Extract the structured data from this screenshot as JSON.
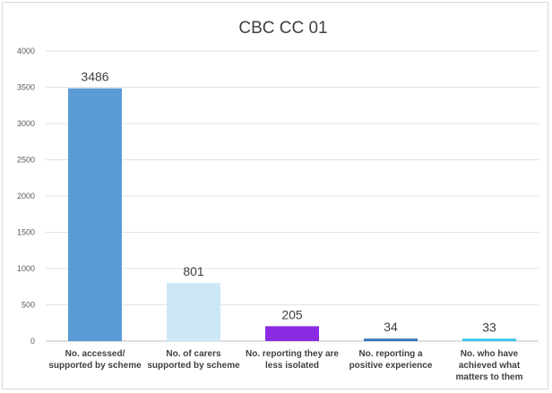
{
  "chart_data": {
    "type": "bar",
    "title": "CBC CC 01",
    "xlabel": "",
    "ylabel": "",
    "ylim": [
      0,
      4000
    ],
    "yticks": [
      0,
      500,
      1000,
      1500,
      2000,
      2500,
      3000,
      3500,
      4000
    ],
    "grid": true,
    "legend": "none",
    "categories": [
      [
        "No. accessed/",
        "supported by scheme"
      ],
      [
        "No. of carers",
        "supported by scheme"
      ],
      [
        "No. reporting they are",
        "less isolated"
      ],
      [
        "No. reporting a",
        "positive experience"
      ],
      [
        "No. who have",
        "achieved what",
        "matters to them"
      ]
    ],
    "values": [
      3486,
      801,
      205,
      34,
      33
    ],
    "colors": [
      "#5b9bd5",
      "#cce8f8",
      "#8a2be2",
      "#2e75b6",
      "#33c3e8"
    ]
  }
}
